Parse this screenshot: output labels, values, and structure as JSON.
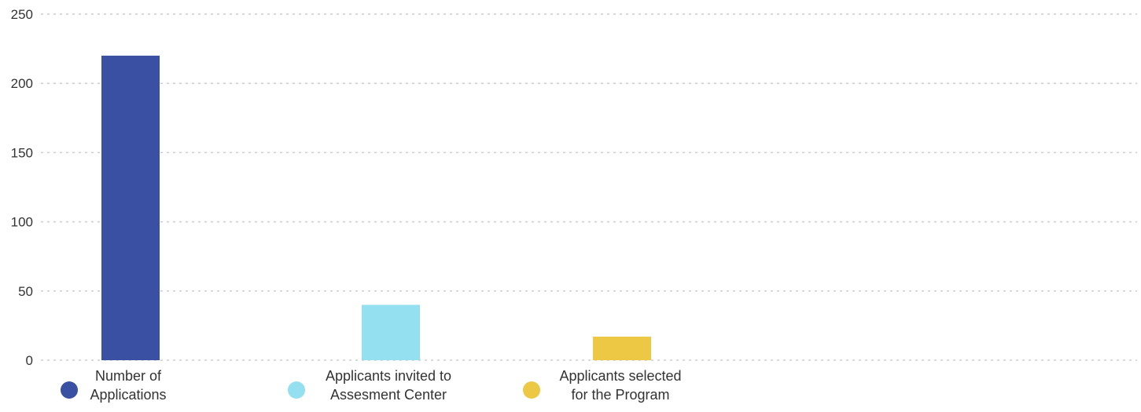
{
  "chart_data": {
    "type": "bar",
    "title": "",
    "xlabel": "",
    "ylabel": "",
    "ylim": [
      0,
      250
    ],
    "yticks": [
      0,
      50,
      100,
      150,
      200,
      250
    ],
    "grid": true,
    "legend_position": "bottom",
    "categories": [
      "Number of Applications",
      "Applicants invited to Assesment Center",
      "Applicants selected for the Program"
    ],
    "legend_lines": [
      [
        "Number of",
        "Applications"
      ],
      [
        "Applicants invited to",
        "Assesment Center"
      ],
      [
        "Applicants selected",
        "for the Program"
      ]
    ],
    "values": [
      220,
      40,
      17
    ],
    "colors": [
      "#3a50a2",
      "#94dff0",
      "#ecc844"
    ],
    "text_color": "#333333",
    "grid_color": "#cccccc"
  }
}
